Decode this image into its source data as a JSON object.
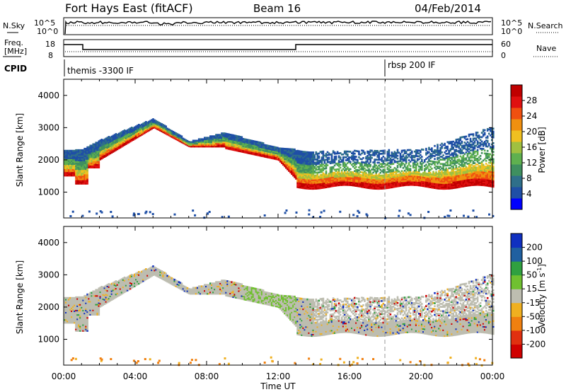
{
  "header": {
    "title": "Fort Hays East (fitACF)",
    "beam": "Beam 16",
    "date": "04/Feb/2014"
  },
  "panels": {
    "nsky_label": "N.Sky",
    "nsearch_label": "N.Search",
    "freq_label_1": "Freq.",
    "freq_label_2": "[MHz]",
    "nave_label": "Nave",
    "cpid_label": "CPID",
    "sky_ticks": [
      "10^5",
      "10^0"
    ],
    "search_ticks": [
      "10^5",
      "10^0"
    ],
    "freq_ticks": [
      "18",
      "8"
    ],
    "nave_ticks": [
      "60",
      "0"
    ],
    "cpid_segments": [
      {
        "start_hour": 0,
        "text": "themis -3300 IF"
      },
      {
        "start_hour": 18,
        "text": "rbsp 200 IF"
      }
    ]
  },
  "chart_data": [
    {
      "type": "heatmap",
      "name": "power",
      "ylabel": "Slant Range [km]",
      "y_ticks": [
        "1000",
        "2000",
        "3000",
        "4000"
      ],
      "ylim": [
        200,
        4500
      ],
      "x_ticks": [
        "00:00",
        "04:00",
        "08:00",
        "12:00",
        "16:00",
        "20:00",
        "00:00"
      ],
      "xlim_hours": [
        0,
        24
      ],
      "colorbar_label": "Power [dB]",
      "colorbar_ticks": [
        "4",
        "8",
        "12",
        "16",
        "20",
        "24",
        "28"
      ],
      "colorbar_colors": [
        "#0000ff",
        "#1f4fa6",
        "#2f6f8a",
        "#3f8f5f",
        "#5fb04f",
        "#a0c040",
        "#f0c020",
        "#f09010",
        "#f05010",
        "#e01010",
        "#c00000"
      ]
    },
    {
      "type": "heatmap",
      "name": "velocity",
      "ylabel": "Slant Range [km]",
      "y_ticks": [
        "1000",
        "2000",
        "3000",
        "4000"
      ],
      "ylim": [
        200,
        4500
      ],
      "x_ticks": [
        "00:00",
        "04:00",
        "08:00",
        "12:00",
        "16:00",
        "20:00",
        "00:00"
      ],
      "xlim_hours": [
        0,
        24
      ],
      "xlabel": "Time UT",
      "colorbar_label_main": "Velocity",
      "colorbar_label_units": "[m s",
      "colorbar_label_sup": "-1",
      "colorbar_label_end": "]",
      "colorbar_ticks": [
        "200",
        "100",
        "50",
        "15",
        "-15",
        "-50",
        "-100",
        "-200"
      ],
      "colorbar_colors": [
        "#1030c0",
        "#2060a0",
        "#30a040",
        "#70c030",
        "#bdbdb0",
        "#f0b020",
        "#f08010",
        "#e03010",
        "#d00000"
      ]
    }
  ]
}
